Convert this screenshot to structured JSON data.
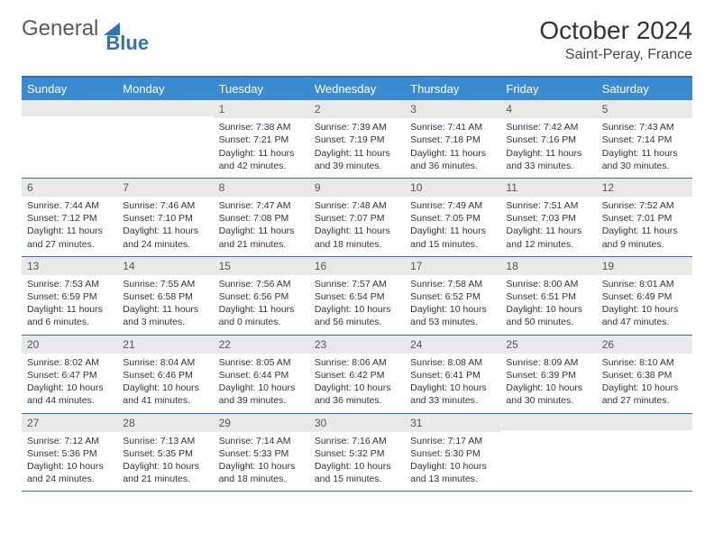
{
  "logo": {
    "text1": "General",
    "text2": "Blue"
  },
  "title": "October 2024",
  "location": "Saint-Peray, France",
  "colors": {
    "header_bar": "#3a8bd0",
    "border": "#2e74b5",
    "day_num_bg": "#e9e9e9",
    "text": "#333333",
    "logo_gray": "#5a5a5a",
    "logo_blue": "#2e74b5"
  },
  "day_headers": [
    "Sunday",
    "Monday",
    "Tuesday",
    "Wednesday",
    "Thursday",
    "Friday",
    "Saturday"
  ],
  "weeks": [
    [
      {
        "empty": true
      },
      {
        "empty": true
      },
      {
        "num": "1",
        "sunrise": "Sunrise: 7:38 AM",
        "sunset": "Sunset: 7:21 PM",
        "daylight": "Daylight: 11 hours and 42 minutes."
      },
      {
        "num": "2",
        "sunrise": "Sunrise: 7:39 AM",
        "sunset": "Sunset: 7:19 PM",
        "daylight": "Daylight: 11 hours and 39 minutes."
      },
      {
        "num": "3",
        "sunrise": "Sunrise: 7:41 AM",
        "sunset": "Sunset: 7:18 PM",
        "daylight": "Daylight: 11 hours and 36 minutes."
      },
      {
        "num": "4",
        "sunrise": "Sunrise: 7:42 AM",
        "sunset": "Sunset: 7:16 PM",
        "daylight": "Daylight: 11 hours and 33 minutes."
      },
      {
        "num": "5",
        "sunrise": "Sunrise: 7:43 AM",
        "sunset": "Sunset: 7:14 PM",
        "daylight": "Daylight: 11 hours and 30 minutes."
      }
    ],
    [
      {
        "num": "6",
        "sunrise": "Sunrise: 7:44 AM",
        "sunset": "Sunset: 7:12 PM",
        "daylight": "Daylight: 11 hours and 27 minutes."
      },
      {
        "num": "7",
        "sunrise": "Sunrise: 7:46 AM",
        "sunset": "Sunset: 7:10 PM",
        "daylight": "Daylight: 11 hours and 24 minutes."
      },
      {
        "num": "8",
        "sunrise": "Sunrise: 7:47 AM",
        "sunset": "Sunset: 7:08 PM",
        "daylight": "Daylight: 11 hours and 21 minutes."
      },
      {
        "num": "9",
        "sunrise": "Sunrise: 7:48 AM",
        "sunset": "Sunset: 7:07 PM",
        "daylight": "Daylight: 11 hours and 18 minutes."
      },
      {
        "num": "10",
        "sunrise": "Sunrise: 7:49 AM",
        "sunset": "Sunset: 7:05 PM",
        "daylight": "Daylight: 11 hours and 15 minutes."
      },
      {
        "num": "11",
        "sunrise": "Sunrise: 7:51 AM",
        "sunset": "Sunset: 7:03 PM",
        "daylight": "Daylight: 11 hours and 12 minutes."
      },
      {
        "num": "12",
        "sunrise": "Sunrise: 7:52 AM",
        "sunset": "Sunset: 7:01 PM",
        "daylight": "Daylight: 11 hours and 9 minutes."
      }
    ],
    [
      {
        "num": "13",
        "sunrise": "Sunrise: 7:53 AM",
        "sunset": "Sunset: 6:59 PM",
        "daylight": "Daylight: 11 hours and 6 minutes."
      },
      {
        "num": "14",
        "sunrise": "Sunrise: 7:55 AM",
        "sunset": "Sunset: 6:58 PM",
        "daylight": "Daylight: 11 hours and 3 minutes."
      },
      {
        "num": "15",
        "sunrise": "Sunrise: 7:56 AM",
        "sunset": "Sunset: 6:56 PM",
        "daylight": "Daylight: 11 hours and 0 minutes."
      },
      {
        "num": "16",
        "sunrise": "Sunrise: 7:57 AM",
        "sunset": "Sunset: 6:54 PM",
        "daylight": "Daylight: 10 hours and 56 minutes."
      },
      {
        "num": "17",
        "sunrise": "Sunrise: 7:58 AM",
        "sunset": "Sunset: 6:52 PM",
        "daylight": "Daylight: 10 hours and 53 minutes."
      },
      {
        "num": "18",
        "sunrise": "Sunrise: 8:00 AM",
        "sunset": "Sunset: 6:51 PM",
        "daylight": "Daylight: 10 hours and 50 minutes."
      },
      {
        "num": "19",
        "sunrise": "Sunrise: 8:01 AM",
        "sunset": "Sunset: 6:49 PM",
        "daylight": "Daylight: 10 hours and 47 minutes."
      }
    ],
    [
      {
        "num": "20",
        "sunrise": "Sunrise: 8:02 AM",
        "sunset": "Sunset: 6:47 PM",
        "daylight": "Daylight: 10 hours and 44 minutes."
      },
      {
        "num": "21",
        "sunrise": "Sunrise: 8:04 AM",
        "sunset": "Sunset: 6:46 PM",
        "daylight": "Daylight: 10 hours and 41 minutes."
      },
      {
        "num": "22",
        "sunrise": "Sunrise: 8:05 AM",
        "sunset": "Sunset: 6:44 PM",
        "daylight": "Daylight: 10 hours and 39 minutes."
      },
      {
        "num": "23",
        "sunrise": "Sunrise: 8:06 AM",
        "sunset": "Sunset: 6:42 PM",
        "daylight": "Daylight: 10 hours and 36 minutes."
      },
      {
        "num": "24",
        "sunrise": "Sunrise: 8:08 AM",
        "sunset": "Sunset: 6:41 PM",
        "daylight": "Daylight: 10 hours and 33 minutes."
      },
      {
        "num": "25",
        "sunrise": "Sunrise: 8:09 AM",
        "sunset": "Sunset: 6:39 PM",
        "daylight": "Daylight: 10 hours and 30 minutes."
      },
      {
        "num": "26",
        "sunrise": "Sunrise: 8:10 AM",
        "sunset": "Sunset: 6:38 PM",
        "daylight": "Daylight: 10 hours and 27 minutes."
      }
    ],
    [
      {
        "num": "27",
        "sunrise": "Sunrise: 7:12 AM",
        "sunset": "Sunset: 5:36 PM",
        "daylight": "Daylight: 10 hours and 24 minutes."
      },
      {
        "num": "28",
        "sunrise": "Sunrise: 7:13 AM",
        "sunset": "Sunset: 5:35 PM",
        "daylight": "Daylight: 10 hours and 21 minutes."
      },
      {
        "num": "29",
        "sunrise": "Sunrise: 7:14 AM",
        "sunset": "Sunset: 5:33 PM",
        "daylight": "Daylight: 10 hours and 18 minutes."
      },
      {
        "num": "30",
        "sunrise": "Sunrise: 7:16 AM",
        "sunset": "Sunset: 5:32 PM",
        "daylight": "Daylight: 10 hours and 15 minutes."
      },
      {
        "num": "31",
        "sunrise": "Sunrise: 7:17 AM",
        "sunset": "Sunset: 5:30 PM",
        "daylight": "Daylight: 10 hours and 13 minutes."
      },
      {
        "empty": true
      },
      {
        "empty": true
      }
    ]
  ]
}
